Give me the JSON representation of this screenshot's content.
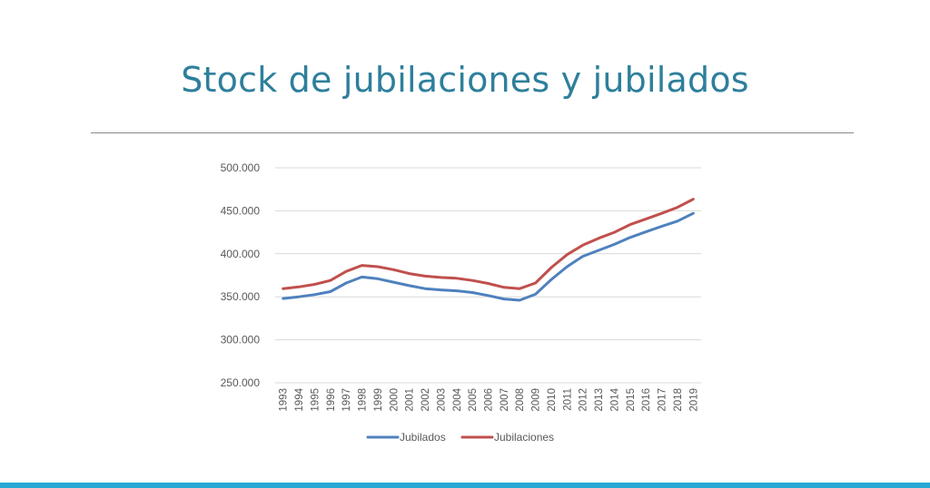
{
  "slide": {
    "title": "Stock de jubilaciones y jubilados"
  },
  "colors": {
    "title": "#2e7f9c",
    "jubilados": "#4f81bd",
    "jubilaciones": "#c0504d",
    "accent_bar": "#27a9d6"
  },
  "chart_data": {
    "type": "line",
    "title": "",
    "xlabel": "",
    "ylabel": "",
    "x": [
      "1993",
      "1994",
      "1995",
      "1996",
      "1997",
      "1998",
      "1999",
      "2000",
      "2001",
      "2002",
      "2003",
      "2004",
      "2005",
      "2006",
      "2007",
      "2008",
      "2009",
      "2010",
      "2011",
      "2012",
      "2013",
      "2014",
      "2015",
      "2016",
      "2017",
      "2018",
      "2019"
    ],
    "ylim": [
      250000,
      500000
    ],
    "yticks": [
      250000,
      300000,
      350000,
      400000,
      450000,
      500000
    ],
    "ytick_labels": [
      "250.000",
      "300.000",
      "350.000",
      "400.000",
      "450.000",
      "500.000"
    ],
    "grid": true,
    "legend_position": "bottom",
    "series": [
      {
        "name": "Jubilados",
        "color": "#4f81bd",
        "values": [
          348000,
          350000,
          352500,
          356000,
          366000,
          373000,
          371000,
          367000,
          363000,
          359500,
          358000,
          357000,
          355000,
          351500,
          347500,
          346000,
          353000,
          370000,
          385000,
          397000,
          404000,
          411000,
          419000,
          425500,
          432000,
          438000,
          447000
        ]
      },
      {
        "name": "Jubilaciones",
        "color": "#c0504d",
        "values": [
          359500,
          361500,
          364500,
          369000,
          379500,
          386500,
          385000,
          381500,
          377000,
          374000,
          372500,
          371500,
          369000,
          365500,
          361000,
          359500,
          366000,
          384000,
          399000,
          410000,
          418000,
          425000,
          434000,
          440500,
          447000,
          454000,
          463500
        ]
      }
    ]
  }
}
